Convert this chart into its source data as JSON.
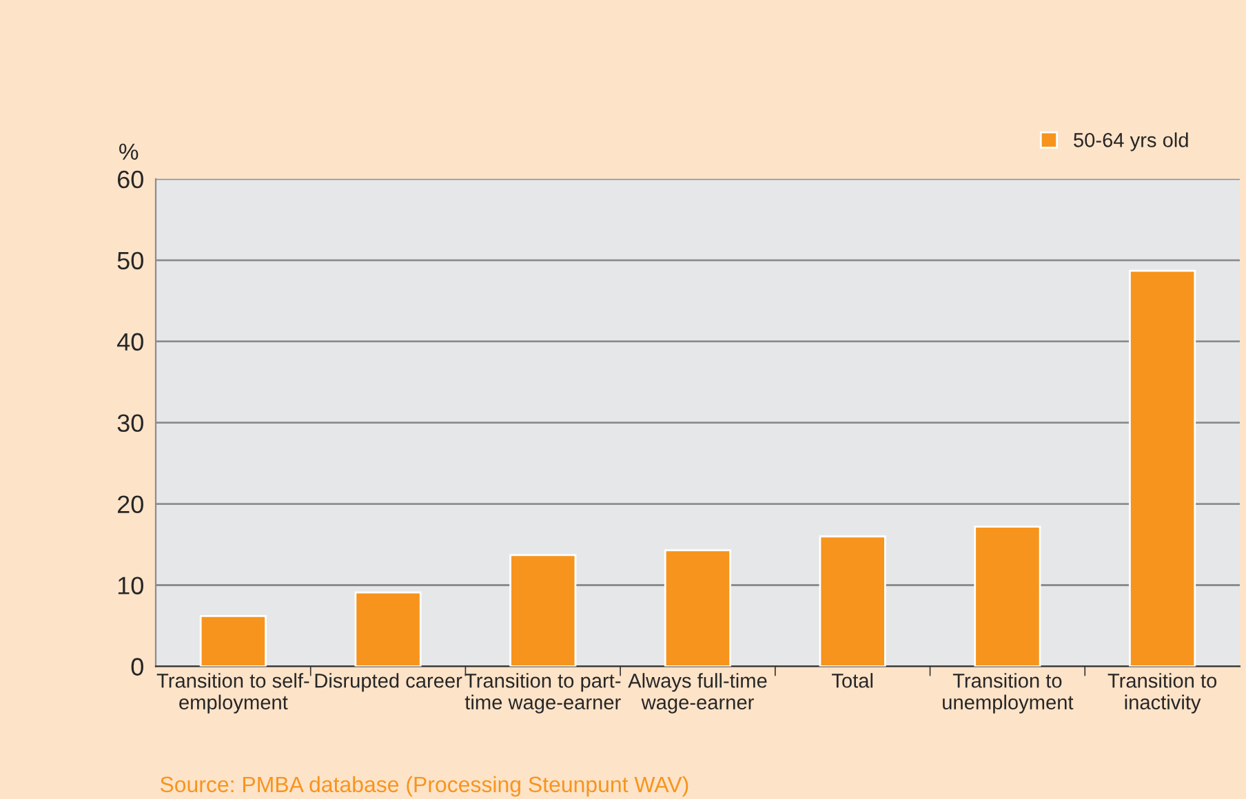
{
  "chart_data": {
    "type": "bar",
    "ylabel": "%",
    "categories": [
      "Transition to self-\nemployment",
      "Disrupted career",
      "Transition to part-\ntime wage-earner",
      "Always full-time\nwage-earner",
      "Total",
      "Transition to\nunemployment",
      "Transition to\ninactivity"
    ],
    "series": [
      {
        "name": "50-64 yrs old",
        "color": "#f7941d",
        "values": [
          6.2,
          9.1,
          13.7,
          14.3,
          16.0,
          17.2,
          48.7
        ]
      }
    ],
    "ylim": [
      0,
      60
    ],
    "yticks": [
      0,
      10,
      20,
      30,
      40,
      50,
      60
    ],
    "grid": "y",
    "legend": "top right",
    "annotations": [
      "Source: PMBA database (Processing Steunpunt WAV)"
    ]
  }
}
